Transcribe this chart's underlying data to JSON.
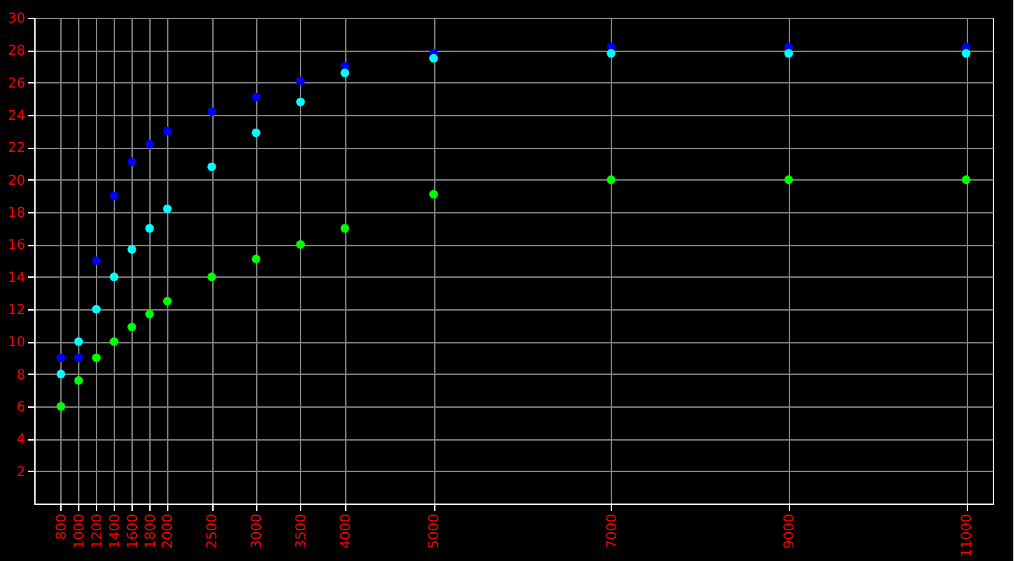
{
  "chart_data": {
    "type": "scatter",
    "x": [
      800,
      1000,
      1200,
      1400,
      1600,
      1800,
      2000,
      2500,
      3000,
      3500,
      4000,
      5000,
      7000,
      9000,
      11000
    ],
    "series": [
      {
        "color": "#0000ff",
        "values": [
          9,
          9,
          15,
          19,
          21.1,
          22.2,
          23,
          24.2,
          25.1,
          26.1,
          27,
          27.8,
          28.2,
          28.2,
          28.2
        ]
      },
      {
        "color": "#00ffff",
        "values": [
          8,
          10,
          12,
          14,
          15.7,
          17,
          18.2,
          20.8,
          22.9,
          24.8,
          26.6,
          27.5,
          27.8,
          27.8,
          27.8
        ]
      },
      {
        "color": "#00ff00",
        "values": [
          6,
          7.6,
          9,
          10,
          10.9,
          11.7,
          12.5,
          14,
          15.1,
          16,
          17,
          19.1,
          20,
          20,
          20
        ]
      }
    ],
    "xlim": [
      500,
      11300
    ],
    "xticks": [
      800,
      1000,
      1200,
      1400,
      1600,
      1800,
      2000,
      2500,
      3000,
      3500,
      4000,
      5000,
      7000,
      9000,
      11000
    ],
    "ylim": [
      0,
      30
    ],
    "yticks": [
      2,
      4,
      6,
      8,
      10,
      12,
      14,
      16,
      18,
      20,
      22,
      24,
      26,
      28,
      30
    ],
    "grid": true,
    "marker": "circle"
  }
}
